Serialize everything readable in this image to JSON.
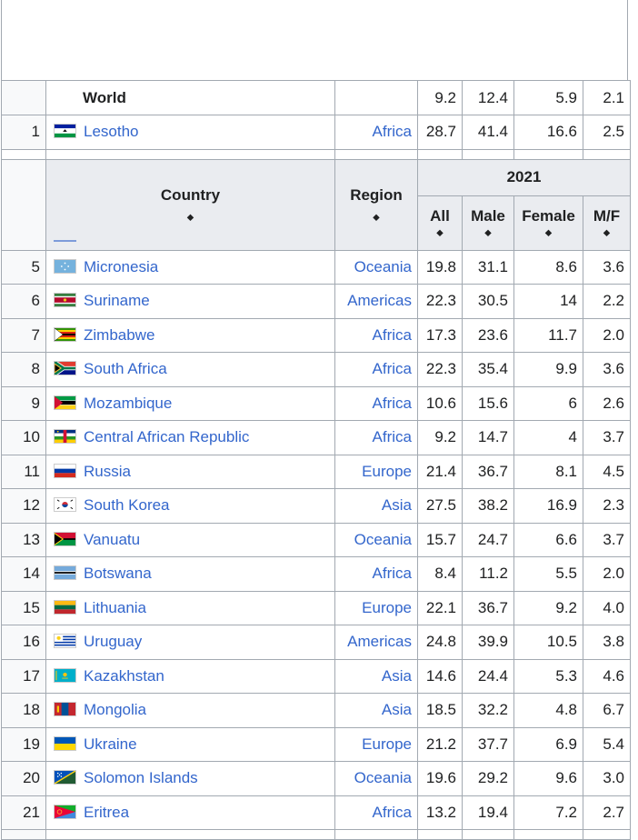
{
  "header": {
    "country": "Country",
    "region": "Region",
    "year": "2021",
    "all": "All",
    "male": "Male",
    "female": "Female",
    "mf": "M/F",
    "sort_glyph": "⬥"
  },
  "world": {
    "name": "World",
    "all": "9.2",
    "male": "12.4",
    "female": "5.9",
    "mf": "2.1"
  },
  "first_row": {
    "rank": "1",
    "country": "Lesotho",
    "region": "Africa",
    "all": "28.7",
    "male": "41.4",
    "female": "16.6",
    "mf": "2.5",
    "flag": "lesotho-flag-icon"
  },
  "rows": [
    {
      "rank": "5",
      "country": "Micronesia",
      "region": "Oceania",
      "all": "19.8",
      "male": "31.1",
      "female": "8.6",
      "mf": "3.6",
      "flag": "micronesia-flag-icon"
    },
    {
      "rank": "6",
      "country": "Suriname",
      "region": "Americas",
      "all": "22.3",
      "male": "30.5",
      "female": "14",
      "mf": "2.2",
      "flag": "suriname-flag-icon"
    },
    {
      "rank": "7",
      "country": "Zimbabwe",
      "region": "Africa",
      "all": "17.3",
      "male": "23.6",
      "female": "11.7",
      "mf": "2.0",
      "flag": "zimbabwe-flag-icon"
    },
    {
      "rank": "8",
      "country": "South Africa",
      "region": "Africa",
      "all": "22.3",
      "male": "35.4",
      "female": "9.9",
      "mf": "3.6",
      "flag": "south-africa-flag-icon"
    },
    {
      "rank": "9",
      "country": "Mozambique",
      "region": "Africa",
      "all": "10.6",
      "male": "15.6",
      "female": "6",
      "mf": "2.6",
      "flag": "mozambique-flag-icon"
    },
    {
      "rank": "10",
      "country": "Central African Republic",
      "region": "Africa",
      "all": "9.2",
      "male": "14.7",
      "female": "4",
      "mf": "3.7",
      "flag": "car-flag-icon"
    },
    {
      "rank": "11",
      "country": "Russia",
      "region": "Europe",
      "all": "21.4",
      "male": "36.7",
      "female": "8.1",
      "mf": "4.5",
      "flag": "russia-flag-icon"
    },
    {
      "rank": "12",
      "country": "South Korea",
      "region": "Asia",
      "all": "27.5",
      "male": "38.2",
      "female": "16.9",
      "mf": "2.3",
      "flag": "south-korea-flag-icon"
    },
    {
      "rank": "13",
      "country": "Vanuatu",
      "region": "Oceania",
      "all": "15.7",
      "male": "24.7",
      "female": "6.6",
      "mf": "3.7",
      "flag": "vanuatu-flag-icon"
    },
    {
      "rank": "14",
      "country": "Botswana",
      "region": "Africa",
      "all": "8.4",
      "male": "11.2",
      "female": "5.5",
      "mf": "2.0",
      "flag": "botswana-flag-icon"
    },
    {
      "rank": "15",
      "country": "Lithuania",
      "region": "Europe",
      "all": "22.1",
      "male": "36.7",
      "female": "9.2",
      "mf": "4.0",
      "flag": "lithuania-flag-icon"
    },
    {
      "rank": "16",
      "country": "Uruguay",
      "region": "Americas",
      "all": "24.8",
      "male": "39.9",
      "female": "10.5",
      "mf": "3.8",
      "flag": "uruguay-flag-icon"
    },
    {
      "rank": "17",
      "country": "Kazakhstan",
      "region": "Asia",
      "all": "14.6",
      "male": "24.4",
      "female": "5.3",
      "mf": "4.6",
      "flag": "kazakhstan-flag-icon"
    },
    {
      "rank": "18",
      "country": "Mongolia",
      "region": "Asia",
      "all": "18.5",
      "male": "32.2",
      "female": "4.8",
      "mf": "6.7",
      "flag": "mongolia-flag-icon"
    },
    {
      "rank": "19",
      "country": "Ukraine",
      "region": "Europe",
      "all": "21.2",
      "male": "37.7",
      "female": "6.9",
      "mf": "5.4",
      "flag": "ukraine-flag-icon"
    },
    {
      "rank": "20",
      "country": "Solomon Islands",
      "region": "Oceania",
      "all": "19.6",
      "male": "29.2",
      "female": "9.6",
      "mf": "3.0",
      "flag": "solomon-islands-flag-icon"
    },
    {
      "rank": "21",
      "country": "Eritrea",
      "region": "Africa",
      "all": "13.2",
      "male": "19.4",
      "female": "7.2",
      "mf": "2.7",
      "flag": "eritrea-flag-icon"
    }
  ]
}
